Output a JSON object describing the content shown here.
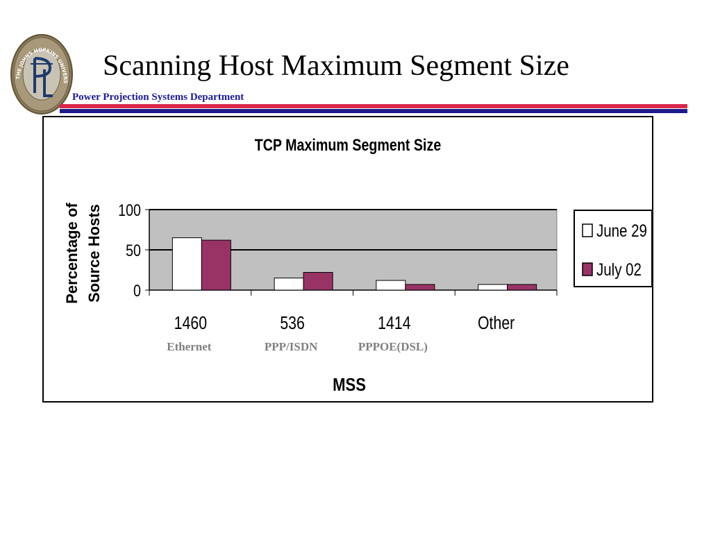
{
  "slide": {
    "title": "Scanning Host Maximum Segment Size",
    "department": "Power Projection Systems Department",
    "logo_text": "THE JOHNS HOPKINS UNIVERSITY",
    "logo_icon": "jhu-apl-seal-icon"
  },
  "colors": {
    "stripe_red": "#d8284a",
    "stripe_blue": "#1b1b8c",
    "plot_bg": "#c0c0c0",
    "june_fill": "#ffffff",
    "july_fill": "#993366",
    "sublabel": "#808080"
  },
  "chart_data": {
    "type": "bar",
    "title": "TCP Maximum Segment Size",
    "xlabel": "MSS",
    "ylabel": "Percentage of Source Hosts",
    "ylabel_lines": [
      "Percentage of",
      "Source Hosts"
    ],
    "categories": [
      "1460",
      "536",
      "1414",
      "Other"
    ],
    "category_sublabels": [
      "Ethernet",
      "PPP/ISDN",
      "PPPOE(DSL)",
      ""
    ],
    "series": [
      {
        "name": "June 29",
        "values": [
          65,
          15,
          12,
          7
        ],
        "color": "#ffffff"
      },
      {
        "name": "July 02",
        "values": [
          62,
          22,
          7,
          7
        ],
        "color": "#993366"
      }
    ],
    "ylim": [
      0,
      100
    ],
    "yticks": [
      0,
      50,
      100
    ],
    "grid": true,
    "legend": "right"
  }
}
